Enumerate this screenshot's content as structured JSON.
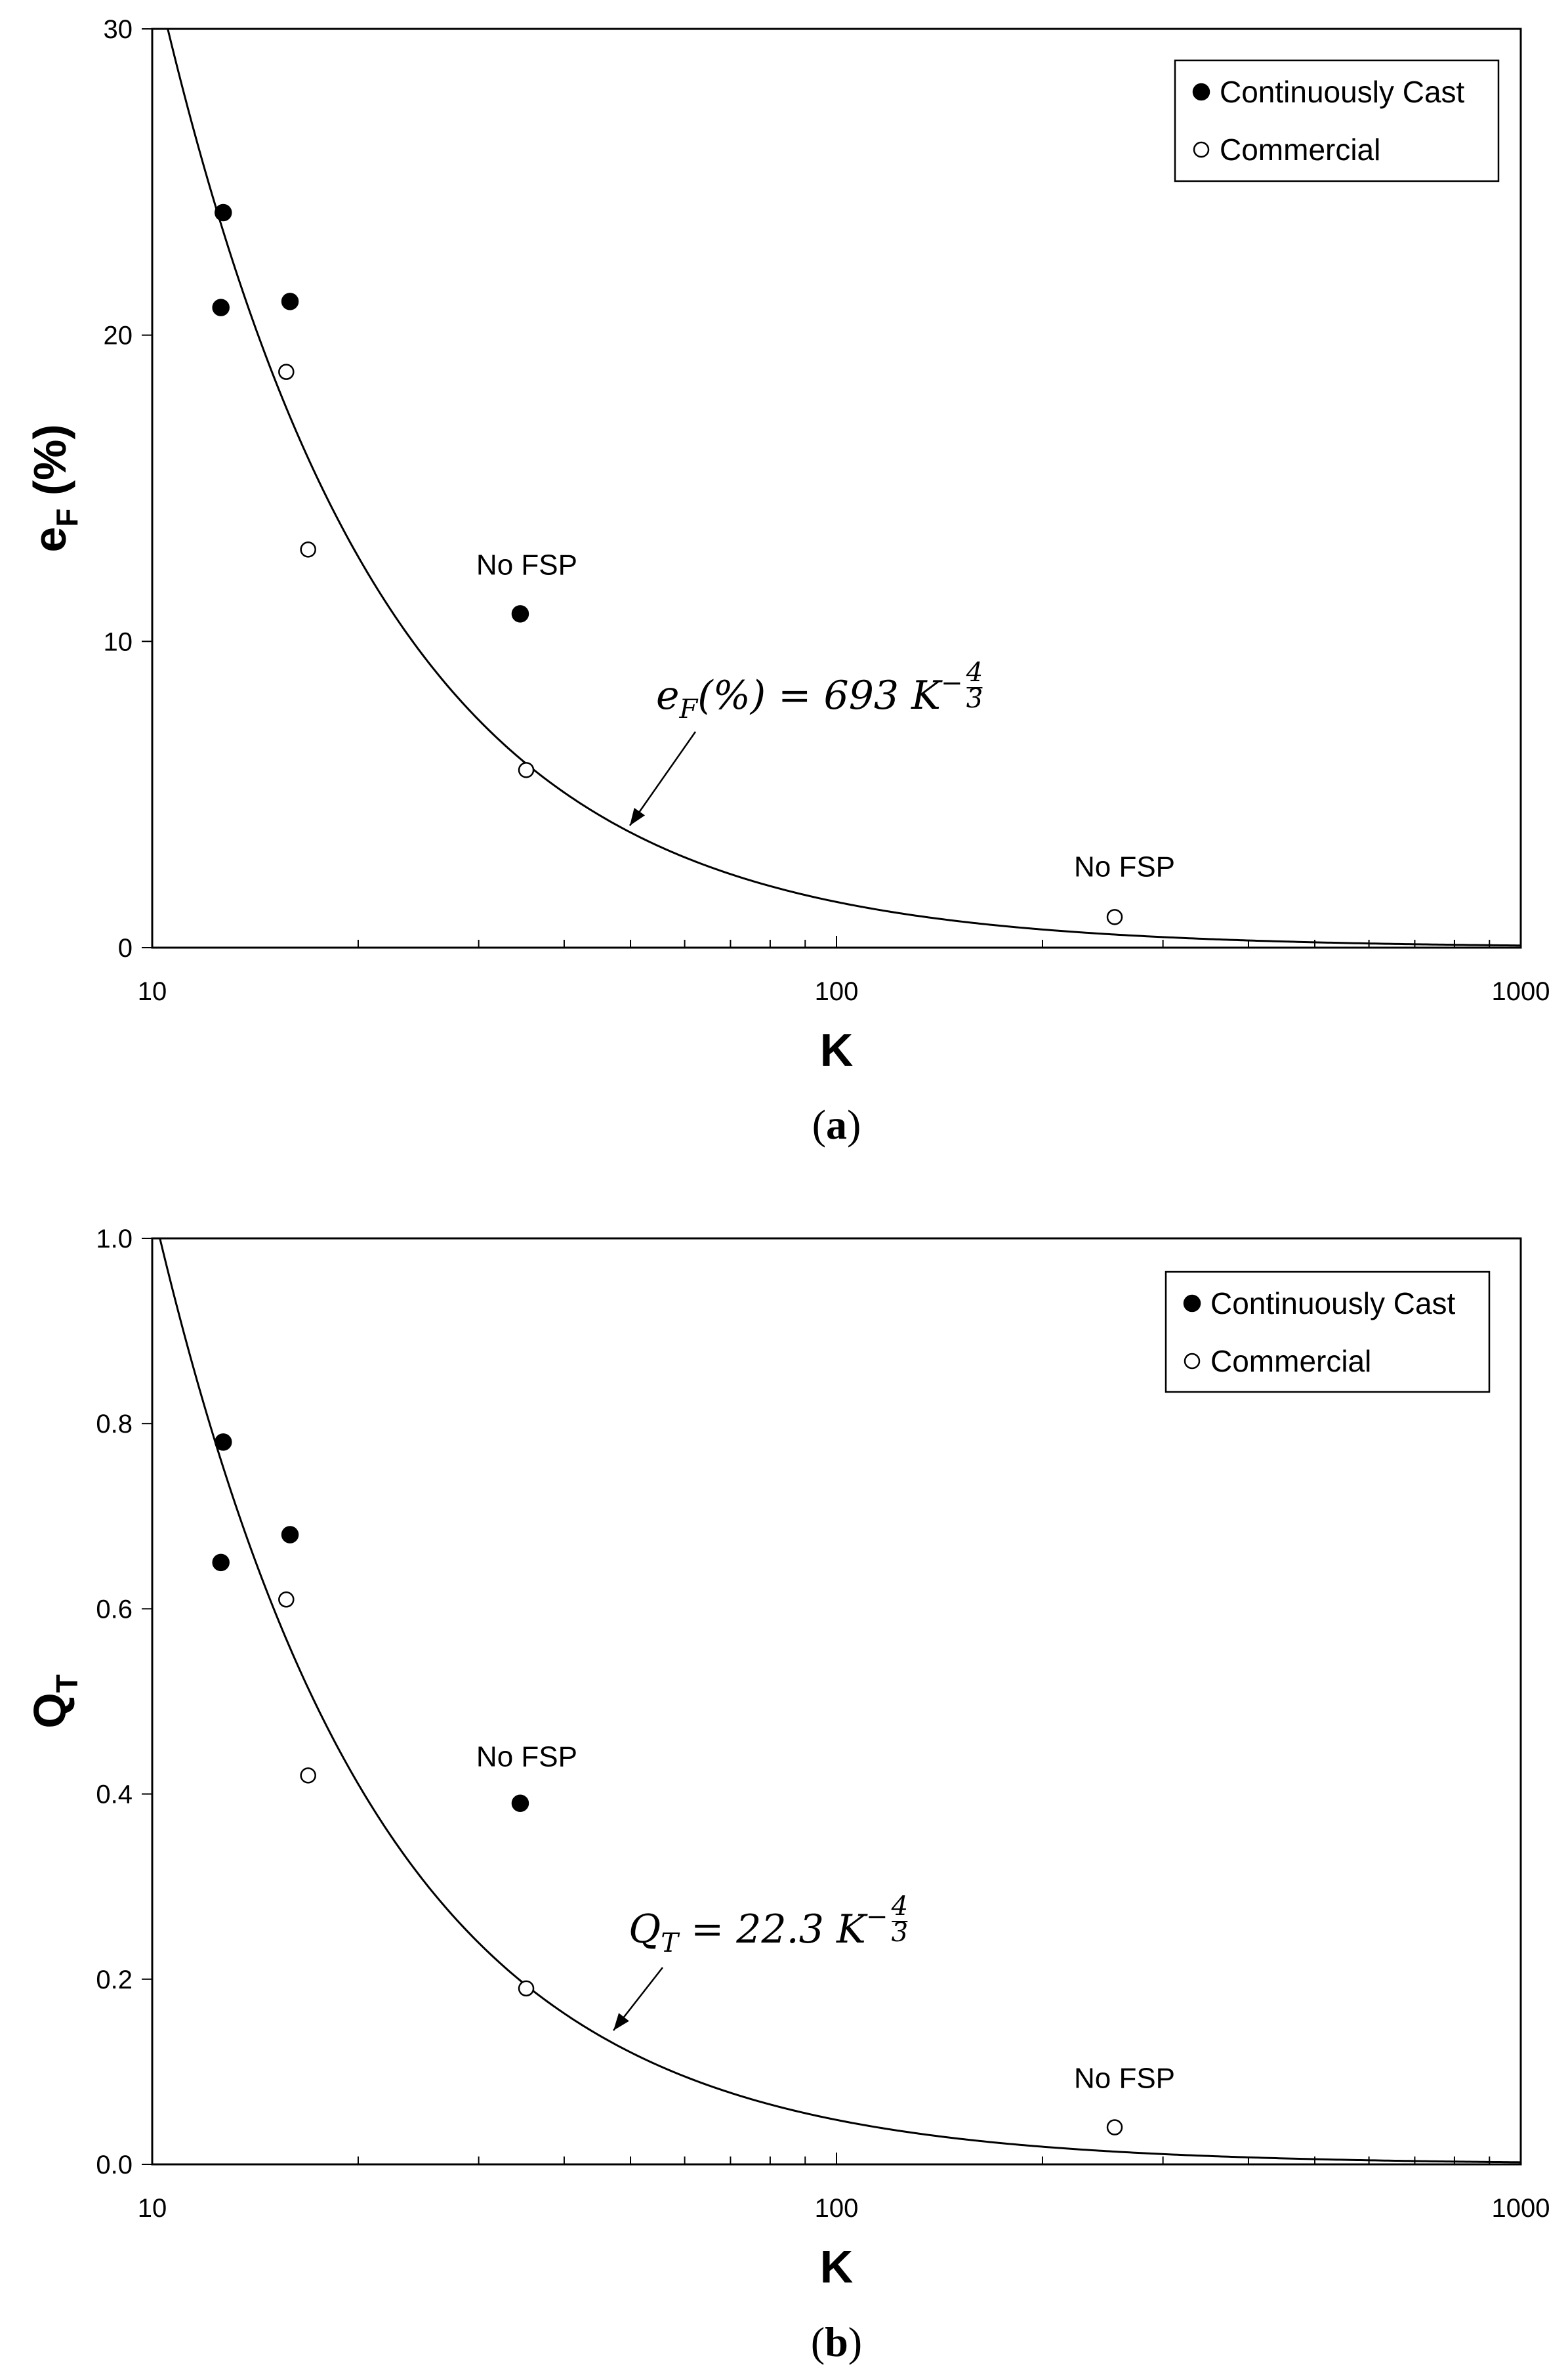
{
  "chart_data": [
    {
      "type": "scatter",
      "caption_open": "(",
      "caption_letter": "a",
      "caption_close": ")",
      "ylabel_main": "e",
      "ylabel_sub": "F",
      "ylabel_tail": " (%)",
      "xlabel": "K",
      "x_scale": "log",
      "xlim": [
        10,
        1000
      ],
      "ylim": [
        0,
        30
      ],
      "xticks": [
        10,
        100,
        1000
      ],
      "xtick_labels": [
        "10",
        "100",
        "1000"
      ],
      "yticks": [
        0,
        10,
        20,
        30
      ],
      "ytick_labels": [
        "0",
        "10",
        "20",
        "30"
      ],
      "grid": false,
      "legend_position": "top-right",
      "series": [
        {
          "name": "Continuously Cast",
          "marker": "filled-circle",
          "points": [
            [
              12.7,
              24.0
            ],
            [
              12.6,
              20.9
            ],
            [
              15.9,
              21.1
            ],
            [
              34.5,
              10.9
            ]
          ]
        },
        {
          "name": "Commercial",
          "marker": "open-circle",
          "points": [
            [
              15.7,
              18.8
            ],
            [
              16.9,
              13.0
            ],
            [
              35.2,
              5.8
            ],
            [
              255,
              1.0
            ]
          ]
        }
      ],
      "fit": {
        "coefficient": 693,
        "exponent": -1.3333333
      },
      "annotations": [
        {
          "text": "No FSP",
          "at": [
            34.5,
            10.9
          ]
        },
        {
          "text": "No FSP",
          "at": [
            255,
            1.0
          ]
        }
      ],
      "equation": {
        "lhs": "e",
        "lhs_sub": "F",
        "lhs_rest": "(%) = 693 K",
        "exp_num": "4",
        "exp_den": "3",
        "exp_sign": "−"
      }
    },
    {
      "type": "scatter",
      "caption_open": "(",
      "caption_letter": "b",
      "caption_close": ")",
      "ylabel_main": "Q",
      "ylabel_sub": "T",
      "ylabel_tail": "",
      "xlabel": "K",
      "x_scale": "log",
      "xlim": [
        10,
        1000
      ],
      "ylim": [
        0,
        1.0
      ],
      "xticks": [
        10,
        100,
        1000
      ],
      "xtick_labels": [
        "10",
        "100",
        "1000"
      ],
      "yticks": [
        0,
        0.2,
        0.4,
        0.6,
        0.8,
        1.0
      ],
      "ytick_labels": [
        "0.0",
        "0.2",
        "0.4",
        "0.6",
        "0.8",
        "1.0"
      ],
      "grid": false,
      "legend_position": "top-right",
      "series": [
        {
          "name": "Continuously Cast",
          "marker": "filled-circle",
          "points": [
            [
              12.7,
              0.78
            ],
            [
              12.6,
              0.65
            ],
            [
              15.9,
              0.68
            ],
            [
              34.5,
              0.39
            ]
          ]
        },
        {
          "name": "Commercial",
          "marker": "open-circle",
          "points": [
            [
              15.7,
              0.61
            ],
            [
              16.9,
              0.42
            ],
            [
              35.2,
              0.19
            ],
            [
              255,
              0.04
            ]
          ]
        }
      ],
      "fit": {
        "coefficient": 22.3,
        "exponent": -1.3333333
      },
      "annotations": [
        {
          "text": "No FSP",
          "at": [
            34.5,
            0.39
          ]
        },
        {
          "text": "No FSP",
          "at": [
            255,
            0.04
          ]
        }
      ],
      "equation": {
        "lhs": "Q",
        "lhs_sub": "T",
        "lhs_rest": " = 22.3 K",
        "exp_num": "4",
        "exp_den": "3",
        "exp_sign": "−"
      }
    }
  ]
}
